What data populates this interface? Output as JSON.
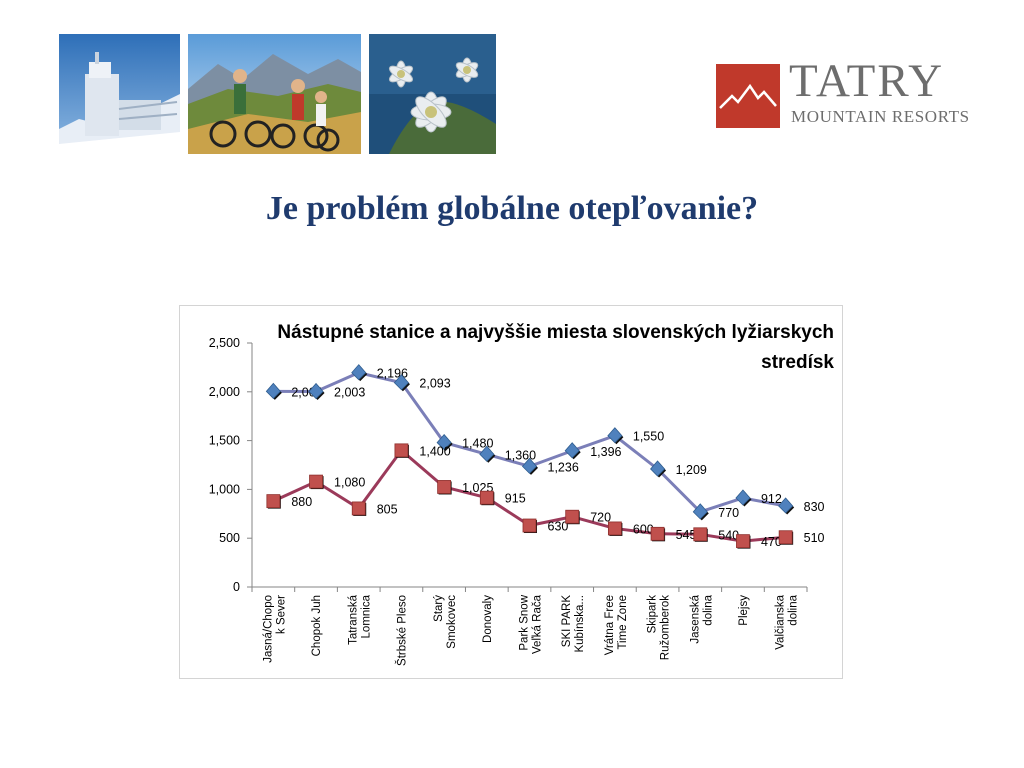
{
  "slide": {
    "title": "Je problém globálne otepľovanie?"
  },
  "logo": {
    "word": "TATRY",
    "subtitle": "MOUNTAIN RESORTS",
    "box_color": "#c0392b",
    "text_color": "#6d6d6d"
  },
  "photos": [
    "mountain-weather-station-photo",
    "mountain-bikers-photo",
    "edelweiss-flower-photo"
  ],
  "chart_data": {
    "type": "line",
    "title": "Nástupné stanice a najvyššie miesta slovenských lyžiarskych stredísk",
    "categories": [
      [
        "Jasná/Chopo",
        "k Sever"
      ],
      [
        "Chopok Juh"
      ],
      [
        "Tatranská",
        "Lomnica"
      ],
      [
        "Štrbské Pleso"
      ],
      [
        "Starý",
        "Smokovec"
      ],
      [
        "Donovaly"
      ],
      [
        "Park Snow",
        "Veľká Rača"
      ],
      [
        "SKI PARK",
        "Kubínska..."
      ],
      [
        "Vrátna Free",
        "Time Zone"
      ],
      [
        "Skipark",
        "Ružomberok"
      ],
      [
        "Jasenská",
        "dolina"
      ],
      [
        "Plejsy"
      ],
      [
        "Valčianska",
        "dolina"
      ]
    ],
    "series": [
      {
        "values": [
          2004,
          2003,
          2196,
          2093,
          1480,
          1360,
          1236,
          1396,
          1550,
          1209,
          770,
          912,
          830
        ],
        "labels": [
          "2,004",
          "2,003",
          "2,196",
          "2,093",
          "1,480",
          "1,360",
          "1,236",
          "1,396",
          "1,550",
          "1,209",
          "770",
          "912",
          "830"
        ],
        "color": "#4f81bd",
        "line_color": "#7b7fb8",
        "marker": "diamond"
      },
      {
        "values": [
          880,
          1080,
          805,
          1400,
          1025,
          915,
          630,
          720,
          600,
          545,
          540,
          470,
          510
        ],
        "labels": [
          "880",
          "1,080",
          "805",
          "1,400",
          "1,025",
          "915",
          "630",
          "720",
          "600",
          "545",
          "540",
          "470",
          "510"
        ],
        "color": "#c0504d",
        "line_color": "#9b3a5a",
        "marker": "square"
      }
    ],
    "yticks": [
      "0",
      "500",
      "1,000",
      "1,500",
      "2,000",
      "2,500"
    ],
    "ylim": [
      0,
      2500
    ],
    "grid": false,
    "legend": "none"
  }
}
